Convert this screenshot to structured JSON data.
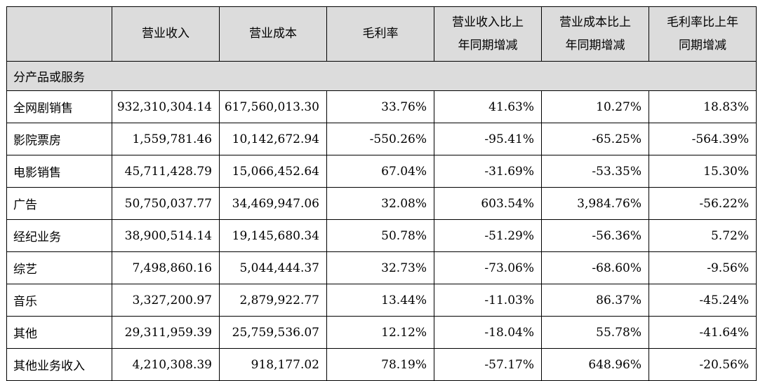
{
  "table": {
    "columns": [
      "",
      "营业收入",
      "营业成本",
      "毛利率",
      "营业收入比上年同期增减",
      "营业成本比上年同期增减",
      "毛利率比上年同期增减"
    ],
    "column_lines": [
      [
        ""
      ],
      [
        "营业收入"
      ],
      [
        "营业成本"
      ],
      [
        "毛利率"
      ],
      [
        "营业收入比上",
        "年同期增减"
      ],
      [
        "营业成本比上",
        "年同期增减"
      ],
      [
        "毛利率比上年",
        "同期增减"
      ]
    ],
    "section_label": "分产品或服务",
    "rows": [
      [
        "全网剧销售",
        "932,310,304.14",
        "617,560,013.30",
        "33.76%",
        "41.63%",
        "10.27%",
        "18.83%"
      ],
      [
        "影院票房",
        "1,559,781.46",
        "10,142,672.94",
        "-550.26%",
        "-95.41%",
        "-65.25%",
        "-564.39%"
      ],
      [
        "电影销售",
        "45,711,428.79",
        "15,066,452.64",
        "67.04%",
        "-31.69%",
        "-53.35%",
        "15.30%"
      ],
      [
        "广告",
        "50,750,037.77",
        "34,469,947.06",
        "32.08%",
        "603.54%",
        "3,984.76%",
        "-56.22%"
      ],
      [
        "经纪业务",
        "38,900,514.14",
        "19,145,680.34",
        "50.78%",
        "-51.29%",
        "-56.36%",
        "5.72%"
      ],
      [
        "综艺",
        "7,498,860.16",
        "5,044,444.37",
        "32.73%",
        "-73.06%",
        "-68.60%",
        "-9.56%"
      ],
      [
        "音乐",
        "3,327,200.97",
        "2,879,922.77",
        "13.44%",
        "-11.03%",
        "86.37%",
        "-45.24%"
      ],
      [
        "其他",
        "29,311,959.39",
        "25,759,536.07",
        "12.12%",
        "-18.04%",
        "55.78%",
        "-41.64%"
      ],
      [
        "其他业务收入",
        "4,210,308.39",
        "918,177.02",
        "78.19%",
        "-57.17%",
        "648.96%",
        "-20.56%"
      ]
    ]
  }
}
